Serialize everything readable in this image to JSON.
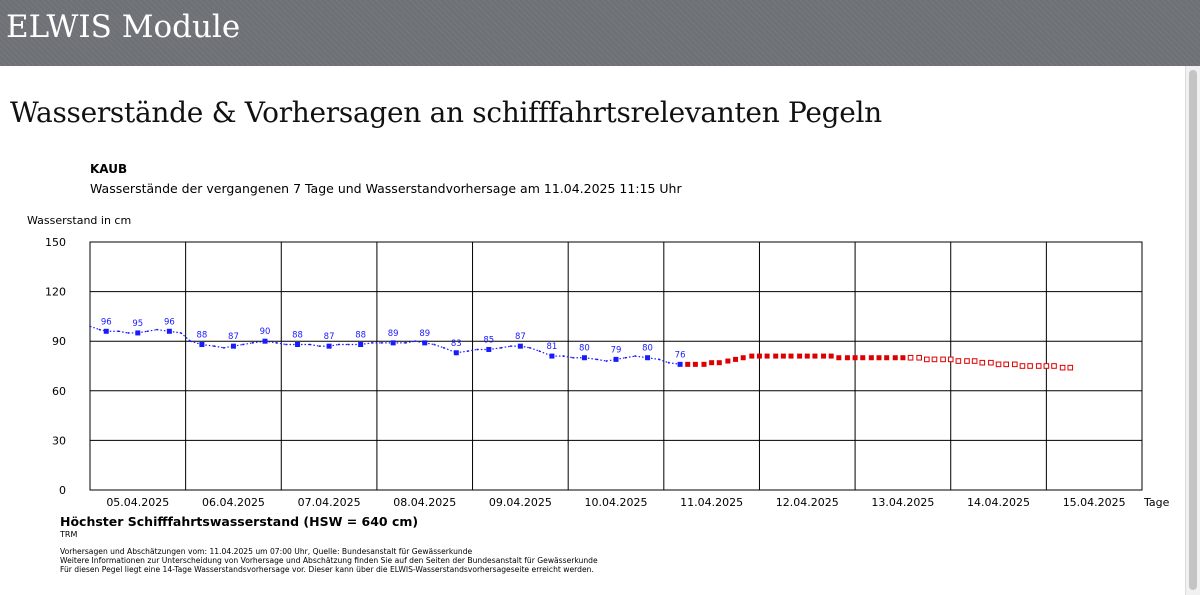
{
  "header": {
    "app_title": "ELWIS Module"
  },
  "page": {
    "heading": "Wasserstände & Vorhersagen an schifffahrtsrelevanten Pegeln"
  },
  "chart_data": {
    "type": "line",
    "station": "KAUB",
    "title": "Wasserstände der vergangenen 7 Tage und Wasserstandvorhersage am 11.04.2025 11:15 Uhr",
    "ylabel": "Wasserstand in cm",
    "xlabel": "Tage",
    "ylim": [
      0,
      150
    ],
    "yticks": [
      0,
      30,
      60,
      90,
      120,
      150
    ],
    "xlim": [
      0,
      11
    ],
    "grid": true,
    "day_labels": [
      "05.04.2025",
      "06.04.2025",
      "07.04.2025",
      "08.04.2025",
      "09.04.2025",
      "10.04.2025",
      "11.04.2025",
      "12.04.2025",
      "13.04.2025",
      "14.04.2025",
      "15.04.2025"
    ],
    "series": [
      {
        "kind": "measured",
        "color": "#1a1aff",
        "labeled_points": [
          {
            "x": 0.17,
            "y": 96
          },
          {
            "x": 0.5,
            "y": 95
          },
          {
            "x": 0.83,
            "y": 96
          },
          {
            "x": 1.17,
            "y": 88
          },
          {
            "x": 1.5,
            "y": 87
          },
          {
            "x": 1.83,
            "y": 90
          },
          {
            "x": 2.17,
            "y": 88
          },
          {
            "x": 2.5,
            "y": 87
          },
          {
            "x": 2.83,
            "y": 88
          },
          {
            "x": 3.17,
            "y": 89
          },
          {
            "x": 3.5,
            "y": 89
          },
          {
            "x": 3.83,
            "y": 83
          },
          {
            "x": 4.17,
            "y": 85
          },
          {
            "x": 4.5,
            "y": 87
          },
          {
            "x": 4.83,
            "y": 81
          },
          {
            "x": 5.17,
            "y": 80
          },
          {
            "x": 5.5,
            "y": 79
          },
          {
            "x": 5.83,
            "y": 80
          },
          {
            "x": 6.17,
            "y": 76
          }
        ],
        "trace": [
          [
            0.0,
            99
          ],
          [
            0.1,
            97
          ],
          [
            0.17,
            96
          ],
          [
            0.3,
            96
          ],
          [
            0.4,
            95
          ],
          [
            0.5,
            95
          ],
          [
            0.6,
            96
          ],
          [
            0.7,
            97
          ],
          [
            0.83,
            96
          ],
          [
            0.95,
            95
          ],
          [
            1.05,
            90
          ],
          [
            1.17,
            88
          ],
          [
            1.3,
            87
          ],
          [
            1.4,
            86
          ],
          [
            1.5,
            87
          ],
          [
            1.6,
            88
          ],
          [
            1.7,
            89
          ],
          [
            1.83,
            90
          ],
          [
            1.95,
            89
          ],
          [
            2.05,
            88
          ],
          [
            2.17,
            88
          ],
          [
            2.3,
            88
          ],
          [
            2.4,
            87
          ],
          [
            2.5,
            87
          ],
          [
            2.6,
            88
          ],
          [
            2.7,
            88
          ],
          [
            2.83,
            88
          ],
          [
            2.95,
            89
          ],
          [
            3.05,
            89
          ],
          [
            3.17,
            89
          ],
          [
            3.3,
            89
          ],
          [
            3.4,
            90
          ],
          [
            3.5,
            89
          ],
          [
            3.6,
            88
          ],
          [
            3.7,
            86
          ],
          [
            3.83,
            83
          ],
          [
            3.95,
            84
          ],
          [
            4.05,
            85
          ],
          [
            4.17,
            85
          ],
          [
            4.3,
            86
          ],
          [
            4.4,
            87
          ],
          [
            4.5,
            87
          ],
          [
            4.6,
            86
          ],
          [
            4.7,
            84
          ],
          [
            4.83,
            81
          ],
          [
            4.95,
            81
          ],
          [
            5.05,
            80
          ],
          [
            5.17,
            80
          ],
          [
            5.3,
            79
          ],
          [
            5.4,
            78
          ],
          [
            5.5,
            79
          ],
          [
            5.6,
            80
          ],
          [
            5.7,
            81
          ],
          [
            5.83,
            80
          ],
          [
            5.95,
            79
          ],
          [
            6.05,
            77
          ],
          [
            6.17,
            76
          ]
        ]
      },
      {
        "kind": "forecast",
        "color": "#dd0000",
        "values": [
          [
            6.25,
            76
          ],
          [
            6.33,
            76
          ],
          [
            6.42,
            76
          ],
          [
            6.5,
            77
          ],
          [
            6.58,
            77
          ],
          [
            6.67,
            78
          ],
          [
            6.75,
            79
          ],
          [
            6.83,
            80
          ],
          [
            6.92,
            81
          ],
          [
            7.0,
            81
          ],
          [
            7.08,
            81
          ],
          [
            7.17,
            81
          ],
          [
            7.25,
            81
          ],
          [
            7.33,
            81
          ],
          [
            7.42,
            81
          ],
          [
            7.5,
            81
          ],
          [
            7.58,
            81
          ],
          [
            7.67,
            81
          ],
          [
            7.75,
            81
          ],
          [
            7.83,
            80
          ],
          [
            7.92,
            80
          ],
          [
            8.0,
            80
          ],
          [
            8.08,
            80
          ],
          [
            8.17,
            80
          ],
          [
            8.25,
            80
          ],
          [
            8.33,
            80
          ],
          [
            8.42,
            80
          ],
          [
            8.5,
            80
          ]
        ]
      },
      {
        "kind": "estimate",
        "color": "#dd0000",
        "values": [
          [
            8.58,
            80
          ],
          [
            8.67,
            80
          ],
          [
            8.75,
            79
          ],
          [
            8.83,
            79
          ],
          [
            8.92,
            79
          ],
          [
            9.0,
            79
          ],
          [
            9.08,
            78
          ],
          [
            9.17,
            78
          ],
          [
            9.25,
            78
          ],
          [
            9.33,
            77
          ],
          [
            9.42,
            77
          ],
          [
            9.5,
            76
          ],
          [
            9.58,
            76
          ],
          [
            9.67,
            76
          ],
          [
            9.75,
            75
          ],
          [
            9.83,
            75
          ],
          [
            9.92,
            75
          ],
          [
            10.0,
            75
          ],
          [
            10.08,
            75
          ],
          [
            10.17,
            74
          ],
          [
            10.25,
            74
          ]
        ]
      }
    ]
  },
  "hsw": "Höchster Schifffahrtswasserstand (HSW = 640 cm)",
  "trm": "TRM",
  "notes": [
    "Vorhersagen und Abschätzungen vom: 11.04.2025 um 07:00 Uhr, Quelle: Bundesanstalt für Gewässerkunde",
    "Weitere Informationen zur Unterscheidung von Vorhersage und Abschätzung finden Sie auf den Seiten der Bundesanstalt für Gewässerkunde",
    "Für diesen Pegel liegt eine 14-Tage Wasserstandsvorhersage vor. Dieser kann über die ELWIS-Wasserstandsvorhersageseite erreicht werden."
  ]
}
